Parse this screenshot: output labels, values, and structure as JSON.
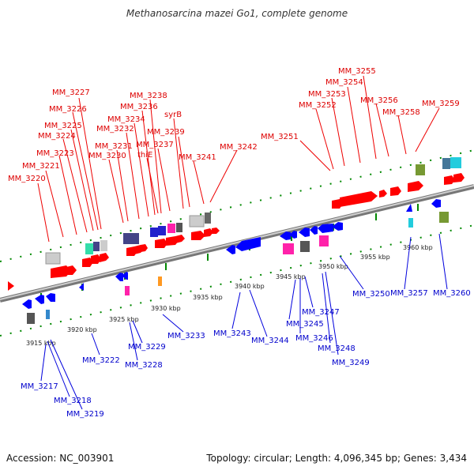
{
  "title": "Methanosarcina mazei Go1, complete genome",
  "footer": {
    "accession": "Accession: NC_003901",
    "summary": "Topology: circular; Length: 4,096,345 bp; Genes: 3,434"
  },
  "colors": {
    "forward": "#ff0000",
    "reverse": "#0000ff",
    "backbone": "#999999",
    "tick": "#007700"
  },
  "scale_labels": [
    "3915 kbp",
    "3920 kbp",
    "3925 kbp",
    "3930 kbp",
    "3935 kbp",
    "3940 kbp",
    "3945 kbp",
    "3950 kbp",
    "3955 kbp",
    "3960 kbp"
  ],
  "forward_genes": [
    "MM_3220",
    "MM_3221",
    "MM_3223",
    "MM_3224",
    "MM_3225",
    "MM_3226",
    "MM_3227",
    "MM_3230",
    "MM_3231",
    "MM_3232",
    "MM_3234",
    "MM_3236",
    "MM_3238",
    "thiE",
    "MM_3237",
    "syrB",
    "MM_3239",
    "MM_3241",
    "MM_3242",
    "MM_3251",
    "MM_3252",
    "MM_3253",
    "MM_3254",
    "MM_3255",
    "MM_3256",
    "MM_3258",
    "MM_3259"
  ],
  "reverse_genes": [
    "MM_3217",
    "MM_3218",
    "MM_3219",
    "MM_3222",
    "MM_3228",
    "MM_3229",
    "MM_3233",
    "MM_3243",
    "MM_3244",
    "MM_3245",
    "MM_3246",
    "MM_3247",
    "MM_3248",
    "MM_3249",
    "MM_3250",
    "MM_3257",
    "MM_3260"
  ]
}
